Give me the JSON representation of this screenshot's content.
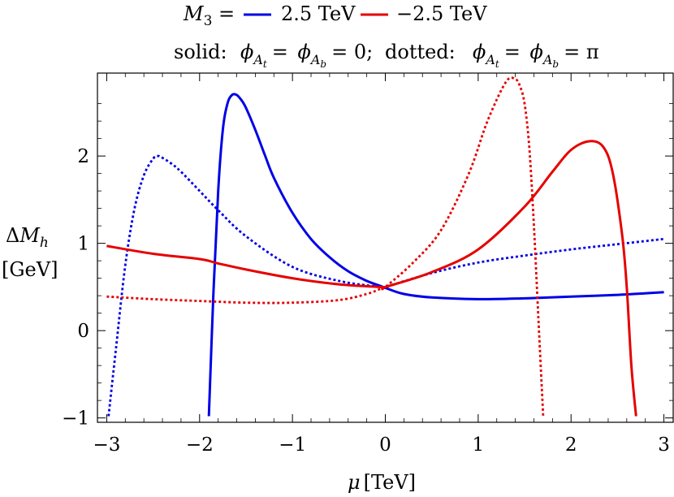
{
  "chart_data": {
    "type": "line",
    "title": "",
    "xlabel": "μ [TeV]",
    "ylabel": "ΔM_h [GeV]",
    "xlim": [
      -3.1,
      3.1
    ],
    "ylim": [
      -1.05,
      2.95
    ],
    "grid": false,
    "xticks": [
      -3,
      -2,
      -1,
      0,
      1,
      2,
      3
    ],
    "yticks": [
      -1,
      0,
      1,
      2
    ],
    "xtick_labels": [
      "−3",
      "−2",
      "−1",
      "0",
      "1",
      "2",
      "3"
    ],
    "ytick_labels": [
      "−1",
      "0",
      "1",
      "2"
    ],
    "legend": {
      "position": "top",
      "M3_prefix": "M",
      "M3_sub": "3",
      "M3_eq": " =",
      "entry_blue": "2.5 TeV",
      "entry_red": "−2.5 TeV",
      "solid_label": "solid:",
      "dotted_label": "dotted:",
      "phi_symbol": "ϕ",
      "sub_At_A": "A",
      "sub_At_t": "t",
      "sub_Ab_A": "A",
      "sub_Ab_b": "b",
      "eq_zero": "= 0;",
      "eq": "=",
      "eq_pi": "= π",
      "sep": "="
    },
    "axis_text": {
      "delta": "Δ",
      "M": "M",
      "h": "h",
      "gev": "[GeV]",
      "mu": "μ",
      "tev": "[TeV]"
    },
    "colors": {
      "blue": "#0000e6",
      "red": "#e60000"
    },
    "series": [
      {
        "color": "blue",
        "style": "solid",
        "x": [
          -1.9,
          -1.85,
          -1.8,
          -1.75,
          -1.7,
          -1.65,
          -1.6,
          -1.55,
          -1.5,
          -1.4,
          -1.3,
          -1.2,
          -1.0,
          -0.8,
          -0.6,
          -0.4,
          -0.2,
          -0.05,
          0.0,
          0.2,
          0.5,
          1.0,
          1.5,
          2.0,
          2.5,
          3.0
        ],
        "y": [
          -0.98,
          0.45,
          1.6,
          2.3,
          2.6,
          2.7,
          2.7,
          2.64,
          2.55,
          2.3,
          2.02,
          1.75,
          1.35,
          1.05,
          0.84,
          0.68,
          0.57,
          0.51,
          0.49,
          0.42,
          0.38,
          0.36,
          0.37,
          0.39,
          0.41,
          0.44
        ]
      },
      {
        "color": "blue",
        "style": "dotted",
        "x": [
          -2.98,
          -2.9,
          -2.8,
          -2.7,
          -2.6,
          -2.5,
          -2.45,
          -2.4,
          -2.3,
          -2.2,
          -2.0,
          -1.8,
          -1.5,
          -1.0,
          -0.5,
          -0.05,
          0.0,
          0.5,
          1.0,
          1.5,
          2.0,
          2.5,
          3.0
        ],
        "y": [
          -0.98,
          -0.2,
          0.75,
          1.4,
          1.78,
          1.97,
          2.0,
          1.98,
          1.91,
          1.82,
          1.6,
          1.38,
          1.08,
          0.73,
          0.57,
          0.5,
          0.5,
          0.66,
          0.78,
          0.86,
          0.93,
          0.99,
          1.05
        ]
      },
      {
        "color": "red",
        "style": "solid",
        "x": [
          -3.0,
          -2.5,
          -2.0,
          -1.8,
          -1.5,
          -1.0,
          -0.5,
          -0.05,
          0.0,
          0.5,
          1.0,
          1.5,
          1.8,
          2.0,
          2.2,
          2.35,
          2.45,
          2.55,
          2.6,
          2.65,
          2.7
        ],
        "y": [
          0.97,
          0.88,
          0.82,
          0.77,
          0.7,
          0.6,
          0.53,
          0.5,
          0.5,
          0.67,
          0.93,
          1.42,
          1.82,
          2.07,
          2.17,
          2.1,
          1.8,
          1.1,
          0.5,
          -0.4,
          -0.98
        ]
      },
      {
        "color": "red",
        "style": "dotted",
        "x": [
          -3.0,
          -2.5,
          -2.0,
          -1.5,
          -1.0,
          -0.5,
          -0.2,
          -0.05,
          0.0,
          0.3,
          0.6,
          0.9,
          1.1,
          1.3,
          1.4,
          1.45,
          1.5,
          1.55,
          1.6,
          1.65,
          1.7
        ],
        "y": [
          0.39,
          0.36,
          0.34,
          0.32,
          0.32,
          0.35,
          0.42,
          0.48,
          0.5,
          0.78,
          1.15,
          1.8,
          2.4,
          2.85,
          2.88,
          2.8,
          2.6,
          2.1,
          1.2,
          0.1,
          -0.98
        ]
      }
    ]
  }
}
